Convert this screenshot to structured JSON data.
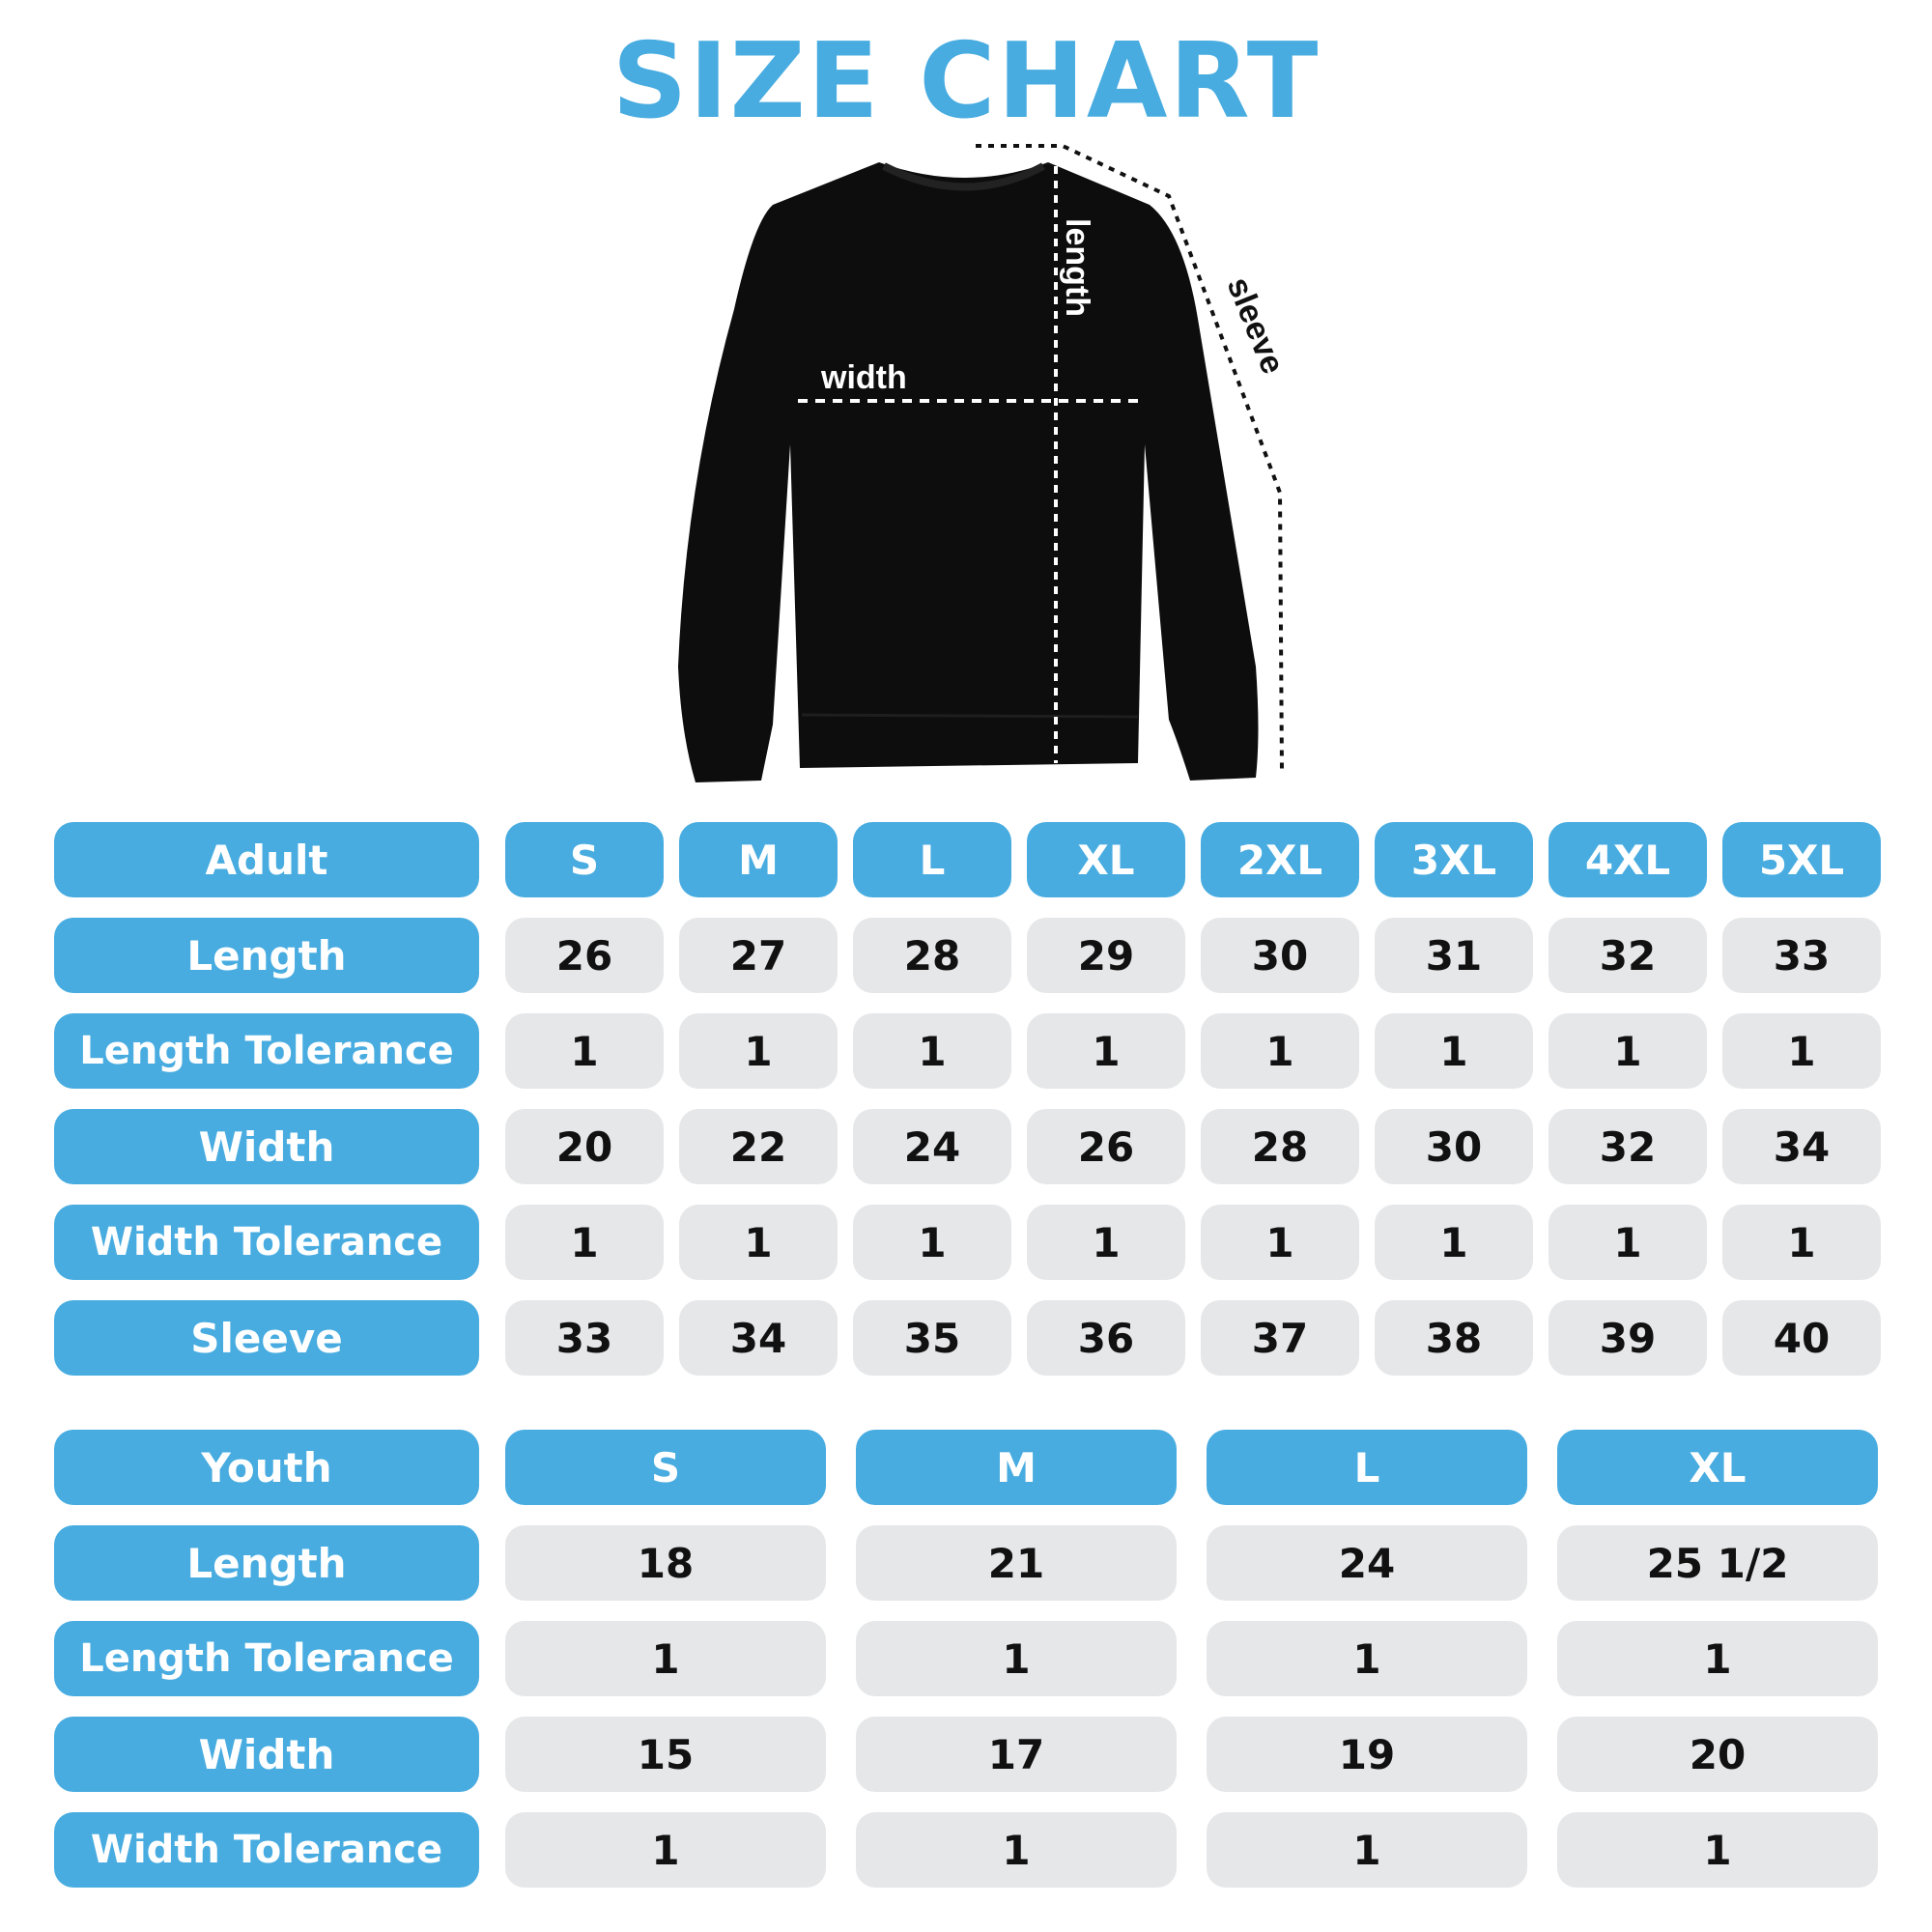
{
  "title": "SIZE CHART",
  "diagram_labels": {
    "length": "length",
    "width": "width",
    "sleeve": "sleeve"
  },
  "colors": {
    "accent": "#48ace0",
    "cell": "#e6e7e9",
    "text": "#111111"
  },
  "adult": {
    "header": "Adult",
    "sizes": [
      "S",
      "M",
      "L",
      "XL",
      "2XL",
      "3XL",
      "4XL",
      "5XL"
    ],
    "rows": [
      {
        "label": "Length",
        "values": [
          "26",
          "27",
          "28",
          "29",
          "30",
          "31",
          "32",
          "33"
        ]
      },
      {
        "label": "Length Tolerance",
        "values": [
          "1",
          "1",
          "1",
          "1",
          "1",
          "1",
          "1",
          "1"
        ]
      },
      {
        "label": "Width",
        "values": [
          "20",
          "22",
          "24",
          "26",
          "28",
          "30",
          "32",
          "34"
        ]
      },
      {
        "label": "Width Tolerance",
        "values": [
          "1",
          "1",
          "1",
          "1",
          "1",
          "1",
          "1",
          "1"
        ]
      },
      {
        "label": "Sleeve",
        "values": [
          "33",
          "34",
          "35",
          "36",
          "37",
          "38",
          "39",
          "40"
        ]
      }
    ]
  },
  "youth": {
    "header": "Youth",
    "sizes": [
      "S",
      "M",
      "L",
      "XL"
    ],
    "rows": [
      {
        "label": "Length",
        "values": [
          "18",
          "21",
          "24",
          "25 1/2"
        ]
      },
      {
        "label": "Length Tolerance",
        "values": [
          "1",
          "1",
          "1",
          "1"
        ]
      },
      {
        "label": "Width",
        "values": [
          "15",
          "17",
          "19",
          "20"
        ]
      },
      {
        "label": "Width Tolerance",
        "values": [
          "1",
          "1",
          "1",
          "1"
        ]
      }
    ]
  }
}
